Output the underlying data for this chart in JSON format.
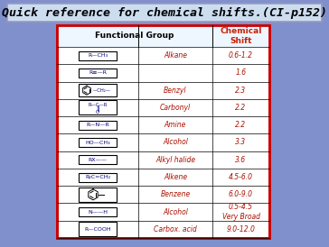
{
  "title": "Quick reference for chemical shifts.(CI-p152)",
  "title_fontsize": 9.5,
  "bg_color": "#8090CC",
  "table_bg": "#FFFFFF",
  "border_color_outer": "#CC0000",
  "col_header1": "Functional Group",
  "col_header2": "Chemical\nShift",
  "rows": [
    {
      "name": "Alkane",
      "shift": "0.6-1.2"
    },
    {
      "name": "",
      "shift": "1.6"
    },
    {
      "name": "Benzyl",
      "shift": "2.3"
    },
    {
      "name": "Carbonyl",
      "shift": "2.2"
    },
    {
      "name": "Amine",
      "shift": "2.2"
    },
    {
      "name": "Alcohol",
      "shift": "3.3"
    },
    {
      "name": "Alkyl halide",
      "shift": "3.6"
    },
    {
      "name": "Alkene",
      "shift": "4.5-6.0"
    },
    {
      "name": "Benzene",
      "shift": "6.0-9.0"
    },
    {
      "name": "Alcohol",
      "shift": "0.5-4.5\nVery Broad"
    },
    {
      "name": "Carbox. acid",
      "shift": "9.0-12.0"
    }
  ]
}
